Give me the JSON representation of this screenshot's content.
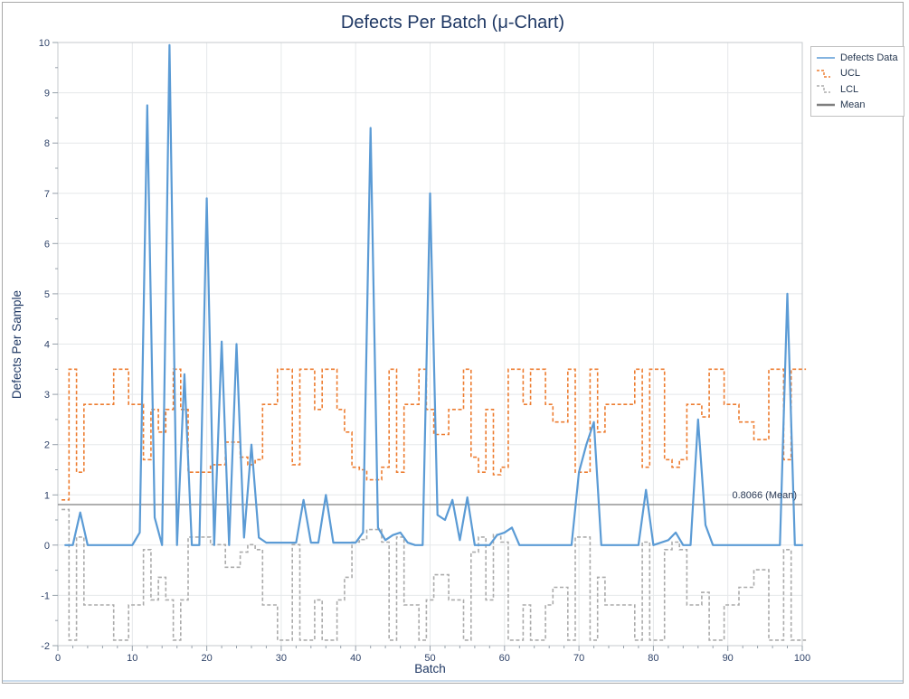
{
  "window": {
    "border_color": "#A8A8A8",
    "bottom_edge_color": "#CBDCEC"
  },
  "chart_data": {
    "type": "line",
    "title": "Defects Per Batch (μ-Chart)",
    "xlabel": "Batch",
    "ylabel": "Defects Per Sample",
    "xlim": [
      0,
      100
    ],
    "ylim": [
      -2,
      10
    ],
    "x_ticks": [
      0,
      10,
      20,
      30,
      40,
      50,
      60,
      70,
      80,
      90,
      100
    ],
    "y_ticks": [
      -2,
      -1,
      0,
      1,
      2,
      3,
      4,
      5,
      6,
      7,
      8,
      9,
      10
    ],
    "grid": true,
    "legend_position": "top-right",
    "mean": 0.8066,
    "mean_annotation": "0.8066 (Mean)",
    "colors": {
      "grid": "#E5E8EA",
      "frame": "#C6CACD",
      "tick": "#96A0AA",
      "title": "#1F3864",
      "tick_label": "#2F4369"
    },
    "x": [
      1,
      2,
      3,
      4,
      5,
      6,
      7,
      8,
      9,
      10,
      11,
      12,
      13,
      14,
      15,
      16,
      17,
      18,
      19,
      20,
      21,
      22,
      23,
      24,
      25,
      26,
      27,
      28,
      29,
      30,
      31,
      32,
      33,
      34,
      35,
      36,
      37,
      38,
      39,
      40,
      41,
      42,
      43,
      44,
      45,
      46,
      47,
      48,
      49,
      50,
      51,
      52,
      53,
      54,
      55,
      56,
      57,
      58,
      59,
      60,
      61,
      62,
      63,
      64,
      65,
      66,
      67,
      68,
      69,
      70,
      71,
      72,
      73,
      74,
      75,
      76,
      77,
      78,
      79,
      80,
      81,
      82,
      83,
      84,
      85,
      86,
      87,
      88,
      89,
      90,
      91,
      92,
      93,
      94,
      95,
      96,
      97,
      98,
      99,
      100
    ],
    "series": [
      {
        "name": "Defects Data",
        "color": "#5B9BD5",
        "style": "line",
        "values": [
          0,
          0,
          0.65,
          0,
          0,
          0,
          0,
          0,
          0,
          0,
          0.25,
          8.75,
          0.55,
          0,
          9.95,
          0,
          3.4,
          0,
          0,
          6.9,
          0,
          4.05,
          0,
          4.0,
          0.15,
          2.0,
          0.15,
          0.05,
          0.05,
          0.05,
          0.05,
          0.05,
          0.9,
          0.05,
          0.05,
          1.0,
          0.05,
          0.05,
          0.05,
          0.05,
          0.25,
          8.3,
          0.35,
          0.1,
          0.2,
          0.25,
          0.05,
          0,
          0,
          7.0,
          0.6,
          0.5,
          0.9,
          0.1,
          0.95,
          0,
          0,
          0,
          0.2,
          0.25,
          0.35,
          0,
          0,
          0,
          0,
          0,
          0,
          0,
          0,
          1.45,
          2.0,
          2.45,
          0,
          0,
          0,
          0,
          0,
          0,
          1.1,
          0,
          0.05,
          0.1,
          0.25,
          0,
          0,
          2.5,
          0.4,
          0,
          0,
          0,
          0,
          0,
          0,
          0,
          0,
          0,
          0,
          5.0,
          0,
          0
        ]
      },
      {
        "name": "UCL",
        "color": "#ED7D31",
        "style": "dashed-step",
        "values": [
          0.9,
          3.5,
          1.45,
          2.8,
          2.8,
          2.8,
          2.8,
          3.5,
          3.5,
          2.8,
          2.8,
          1.7,
          2.7,
          2.25,
          2.7,
          3.5,
          2.7,
          1.45,
          1.45,
          1.45,
          1.6,
          1.6,
          2.05,
          2.05,
          1.75,
          1.6,
          1.7,
          2.8,
          2.8,
          3.5,
          3.5,
          1.6,
          3.5,
          3.5,
          2.7,
          3.5,
          3.5,
          2.7,
          2.25,
          1.55,
          1.5,
          1.3,
          1.3,
          1.55,
          3.5,
          1.45,
          2.8,
          2.8,
          3.5,
          2.7,
          2.2,
          2.2,
          2.7,
          2.7,
          3.5,
          1.75,
          1.45,
          2.7,
          1.4,
          1.55,
          3.5,
          3.5,
          2.8,
          3.5,
          3.5,
          2.8,
          2.45,
          2.45,
          3.5,
          1.45,
          1.45,
          3.5,
          2.25,
          2.8,
          2.8,
          2.8,
          2.8,
          3.5,
          1.55,
          3.5,
          3.5,
          1.7,
          1.55,
          1.7,
          2.8,
          2.8,
          2.55,
          3.5,
          3.5,
          2.8,
          2.8,
          2.45,
          2.45,
          2.1,
          2.1,
          3.5,
          3.5,
          1.7,
          3.5,
          3.5
        ]
      },
      {
        "name": "LCL",
        "color": "#ABABAB",
        "style": "dashed-step",
        "values": [
          0.71,
          -1.89,
          0.16,
          -1.19,
          -1.19,
          -1.19,
          -1.19,
          -1.89,
          -1.89,
          -1.19,
          -1.19,
          -0.09,
          -1.09,
          -0.64,
          -1.09,
          -1.89,
          -1.09,
          0.16,
          0.16,
          0.16,
          0.01,
          0.01,
          -0.44,
          -0.44,
          -0.14,
          0.01,
          -0.09,
          -1.19,
          -1.19,
          -1.89,
          -1.89,
          0.01,
          -1.89,
          -1.89,
          -1.09,
          -1.89,
          -1.89,
          -1.09,
          -0.64,
          0.06,
          0.11,
          0.31,
          0.31,
          0.06,
          -1.89,
          0.16,
          -1.19,
          -1.19,
          -1.89,
          -1.09,
          -0.59,
          -0.59,
          -1.09,
          -1.09,
          -1.89,
          -0.14,
          0.16,
          -1.09,
          0.21,
          0.06,
          -1.89,
          -1.89,
          -1.19,
          -1.89,
          -1.89,
          -1.19,
          -0.84,
          -0.84,
          -1.89,
          0.16,
          0.16,
          -1.89,
          -0.64,
          -1.19,
          -1.19,
          -1.19,
          -1.19,
          -1.89,
          0.06,
          -1.89,
          -1.89,
          -0.09,
          0.06,
          -0.09,
          -1.19,
          -1.19,
          -0.94,
          -1.89,
          -1.89,
          -1.19,
          -1.19,
          -0.84,
          -0.84,
          -0.49,
          -0.49,
          -1.89,
          -1.89,
          -0.09,
          -1.89,
          -1.89
        ]
      },
      {
        "name": "Mean",
        "color": "#7F7F7F",
        "style": "solid-hline",
        "value": 0.8066
      }
    ]
  }
}
